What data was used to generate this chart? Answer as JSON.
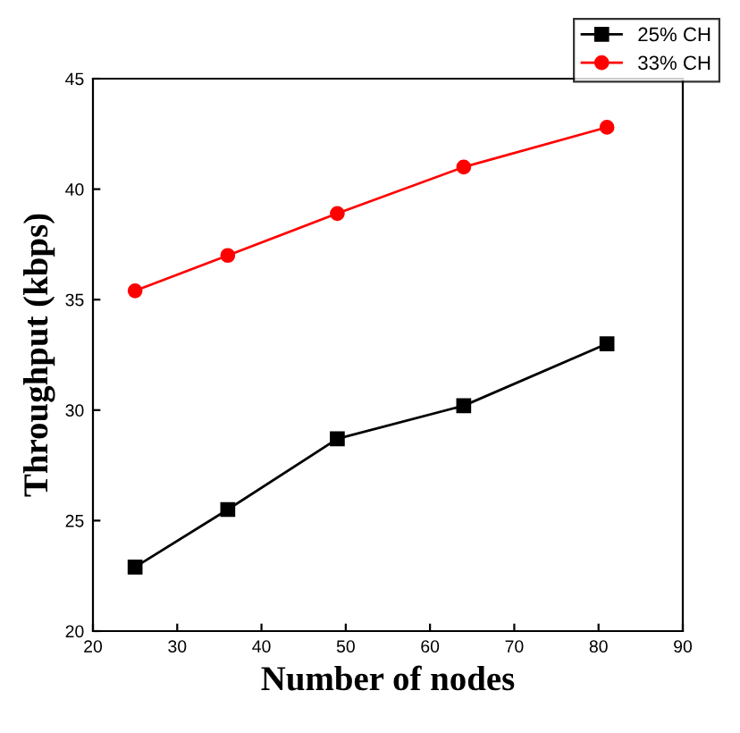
{
  "chart_data": {
    "type": "line",
    "xlabel": "Number of nodes",
    "ylabel": "Throughput (kbps)",
    "x": [
      25,
      36,
      49,
      64,
      81
    ],
    "series": [
      {
        "name": "25% CH",
        "color": "#000000",
        "marker": "square",
        "values": [
          22.9,
          25.5,
          28.7,
          30.2,
          33.0
        ]
      },
      {
        "name": "33% CH",
        "color": "#ff0000",
        "marker": "circle",
        "values": [
          35.4,
          37.0,
          38.9,
          41.0,
          42.8
        ]
      }
    ],
    "xlim": [
      20,
      90
    ],
    "xticks": [
      20,
      30,
      40,
      50,
      60,
      70,
      80,
      90
    ],
    "ylim": [
      20,
      45
    ],
    "yticks": [
      20,
      25,
      30,
      35,
      40,
      45
    ],
    "grid": false,
    "legend": "top right",
    "line_style": "solid"
  }
}
